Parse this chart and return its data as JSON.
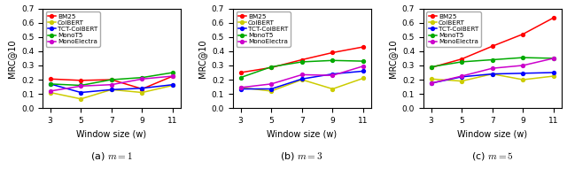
{
  "x": [
    3,
    5,
    7,
    9,
    11
  ],
  "subplot_titles": [
    "(a) $m = 1$",
    "(b) $m = 3$",
    "(c) $m = 5$"
  ],
  "ylabel": "MRC@10",
  "xlabel": "Window size (w)",
  "ylim": [
    0.0,
    0.7
  ],
  "yticks": [
    0.0,
    0.1,
    0.2,
    0.3,
    0.4,
    0.5,
    0.6,
    0.7
  ],
  "series_names": [
    "BM25",
    "ColBERT",
    "TCT-ColBERT",
    "MonoT5",
    "MonoElectra"
  ],
  "series_colors": [
    "#ff0000",
    "#cccc00",
    "#0000ff",
    "#00aa00",
    "#cc00cc"
  ],
  "data": {
    "m1": {
      "BM25": [
        0.205,
        0.195,
        0.2,
        0.135,
        0.225
      ],
      "ColBERT": [
        0.11,
        0.065,
        0.13,
        0.11,
        0.16
      ],
      "TCT-ColBERT": [
        0.17,
        0.11,
        0.13,
        0.14,
        0.165
      ],
      "MonoT5": [
        0.17,
        0.16,
        0.2,
        0.215,
        0.25
      ],
      "MonoElectra": [
        0.12,
        0.155,
        0.165,
        0.205,
        0.225
      ]
    },
    "m3": {
      "BM25": [
        0.25,
        0.285,
        0.34,
        0.39,
        0.43
      ],
      "ColBERT": [
        0.145,
        0.12,
        0.2,
        0.135,
        0.21
      ],
      "TCT-ColBERT": [
        0.135,
        0.135,
        0.205,
        0.24,
        0.26
      ],
      "MonoT5": [
        0.215,
        0.29,
        0.325,
        0.335,
        0.33
      ],
      "MonoElectra": [
        0.145,
        0.17,
        0.235,
        0.23,
        0.295
      ]
    },
    "m5": {
      "BM25": [
        0.285,
        0.345,
        0.435,
        0.52,
        0.635
      ],
      "ColBERT": [
        0.205,
        0.19,
        0.24,
        0.2,
        0.225
      ],
      "TCT-ColBERT": [
        0.175,
        0.22,
        0.24,
        0.245,
        0.25
      ],
      "MonoT5": [
        0.29,
        0.325,
        0.34,
        0.355,
        0.35
      ],
      "MonoElectra": [
        0.175,
        0.225,
        0.28,
        0.3,
        0.35
      ]
    }
  }
}
